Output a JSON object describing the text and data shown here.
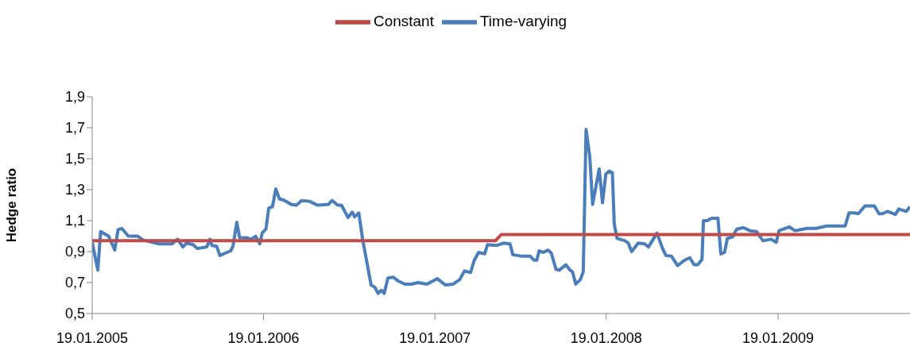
{
  "chart_data": {
    "type": "line",
    "ylabel": "Hedge ratio",
    "legend": "top",
    "xlim": [
      "2005-01-19",
      "2009-10-27"
    ],
    "xticks": [
      {
        "value": "2005-01-19",
        "label": "19.01.2005"
      },
      {
        "value": "2006-01-19",
        "label": "19.01.2006"
      },
      {
        "value": "2007-01-19",
        "label": "19.01.2007"
      },
      {
        "value": "2008-01-19",
        "label": "19.01.2008"
      },
      {
        "value": "2009-01-19",
        "label": "19.01.2009"
      }
    ],
    "ylim": [
      0.5,
      1.9
    ],
    "yticks": [
      {
        "value": 0.5,
        "label": "0,5"
      },
      {
        "value": 0.7,
        "label": "0,7"
      },
      {
        "value": 0.9,
        "label": "0,9"
      },
      {
        "value": 1.1,
        "label": "1,1"
      },
      {
        "value": 1.3,
        "label": "1,3"
      },
      {
        "value": 1.5,
        "label": "1,5"
      },
      {
        "value": 1.7,
        "label": "1,7"
      },
      {
        "value": 1.9,
        "label": "1,9"
      }
    ],
    "series": [
      {
        "name": "Time-varying",
        "color": "#4a7ebb",
        "x": [
          "2005-01-19",
          "2005-01-31",
          "2005-02-06",
          "2005-02-23",
          "2005-03-08",
          "2005-03-15",
          "2005-03-23",
          "2005-04-06",
          "2005-04-26",
          "2005-05-07",
          "2005-06-10",
          "2005-07-08",
          "2005-07-20",
          "2005-07-31",
          "2005-08-08",
          "2005-08-22",
          "2005-08-31",
          "2005-09-20",
          "2005-09-27",
          "2005-10-01",
          "2005-10-11",
          "2005-10-18",
          "2005-11-10",
          "2005-11-15",
          "2005-11-23",
          "2005-11-29",
          "2005-12-13",
          "2005-12-24",
          "2006-01-02",
          "2006-01-11",
          "2006-01-16",
          "2006-01-24",
          "2006-01-30",
          "2006-02-07",
          "2006-02-14",
          "2006-02-22",
          "2006-03-02",
          "2006-03-19",
          "2006-03-30",
          "2006-04-10",
          "2006-04-27",
          "2006-05-14",
          "2006-06-06",
          "2006-06-14",
          "2006-06-26",
          "2006-07-04",
          "2006-07-18",
          "2006-07-27",
          "2006-08-01",
          "2006-08-10",
          "2006-08-18",
          "2006-09-05",
          "2006-09-13",
          "2006-09-20",
          "2006-09-27",
          "2006-10-03",
          "2006-10-11",
          "2006-10-22",
          "2006-11-02",
          "2006-11-16",
          "2006-11-30",
          "2006-12-14",
          "2007-01-02",
          "2007-01-24",
          "2007-02-10",
          "2007-02-27",
          "2007-03-13",
          "2007-03-23",
          "2007-04-05",
          "2007-04-13",
          "2007-04-22",
          "2007-05-05",
          "2007-05-11",
          "2007-05-31",
          "2007-06-14",
          "2007-06-28",
          "2007-07-04",
          "2007-07-24",
          "2007-08-10",
          "2007-08-18",
          "2007-08-24",
          "2007-08-29",
          "2007-09-07",
          "2007-09-17",
          "2007-09-24",
          "2007-10-04",
          "2007-10-11",
          "2007-10-25",
          "2007-11-03",
          "2007-11-08",
          "2007-11-15",
          "2007-11-25",
          "2007-12-01",
          "2007-12-07",
          "2007-12-15",
          "2007-12-21",
          "2008-01-04",
          "2008-01-11",
          "2008-01-18",
          "2008-01-25",
          "2008-02-01",
          "2008-02-05",
          "2008-02-11",
          "2008-02-28",
          "2008-03-06",
          "2008-03-13",
          "2008-03-27",
          "2008-04-10",
          "2008-04-18",
          "2008-05-06",
          "2008-05-18",
          "2008-05-25",
          "2008-06-06",
          "2008-06-19",
          "2008-07-04",
          "2008-07-15",
          "2008-07-24",
          "2008-08-01",
          "2008-08-10",
          "2008-08-13",
          "2008-08-21",
          "2008-08-30",
          "2008-09-13",
          "2008-09-19",
          "2008-09-27",
          "2008-10-03",
          "2008-10-14",
          "2008-10-23",
          "2008-11-06",
          "2008-11-20",
          "2008-12-04",
          "2008-12-18",
          "2009-01-04",
          "2009-01-15",
          "2009-01-21",
          "2009-02-12",
          "2009-02-24",
          "2009-03-21",
          "2009-04-10",
          "2009-05-02",
          "2009-05-25",
          "2009-06-11",
          "2009-06-19",
          "2009-07-01",
          "2009-07-09",
          "2009-07-23",
          "2009-08-12",
          "2009-08-22",
          "2009-08-29",
          "2009-09-09",
          "2009-09-26",
          "2009-10-03",
          "2009-10-19",
          "2009-10-27"
        ],
        "values": [
          0.96,
          0.78,
          1.03,
          1.0,
          0.91,
          1.04,
          1.05,
          1.0,
          1.0,
          0.975,
          0.95,
          0.95,
          0.98,
          0.93,
          0.955,
          0.945,
          0.92,
          0.93,
          0.98,
          0.94,
          0.935,
          0.875,
          0.905,
          0.935,
          1.09,
          0.99,
          0.99,
          0.98,
          1.0,
          0.95,
          1.02,
          1.045,
          1.18,
          1.19,
          1.305,
          1.24,
          1.235,
          1.205,
          1.2,
          1.23,
          1.225,
          1.2,
          1.205,
          1.23,
          1.2,
          1.2,
          1.12,
          1.155,
          1.125,
          1.15,
          0.98,
          0.685,
          0.67,
          0.63,
          0.65,
          0.63,
          0.73,
          0.735,
          0.71,
          0.69,
          0.69,
          0.7,
          0.69,
          0.725,
          0.685,
          0.69,
          0.72,
          0.775,
          0.765,
          0.845,
          0.895,
          0.885,
          0.945,
          0.94,
          0.955,
          0.95,
          0.88,
          0.87,
          0.87,
          0.845,
          0.845,
          0.905,
          0.895,
          0.91,
          0.89,
          0.785,
          0.78,
          0.815,
          0.78,
          0.77,
          0.69,
          0.72,
          0.77,
          1.69,
          1.51,
          1.205,
          1.435,
          1.215,
          1.4,
          1.42,
          1.41,
          1.08,
          0.985,
          0.97,
          0.955,
          0.9,
          0.955,
          0.95,
          0.93,
          1.02,
          0.92,
          0.875,
          0.87,
          0.81,
          0.845,
          0.86,
          0.815,
          0.815,
          0.85,
          1.1,
          1.1,
          1.115,
          1.115,
          0.885,
          0.895,
          0.985,
          0.995,
          1.045,
          1.055,
          1.035,
          1.03,
          0.97,
          0.98,
          0.96,
          1.035,
          1.06,
          1.035,
          1.05,
          1.05,
          1.065,
          1.065,
          1.065,
          1.15,
          1.15,
          1.145,
          1.195,
          1.195,
          1.145,
          1.145,
          1.16,
          1.14,
          1.175,
          1.16,
          1.19
        ]
      },
      {
        "name": "Constant",
        "color": "#be4b48",
        "x": [
          "2005-01-19",
          "2007-05-28",
          "2007-06-09",
          "2009-10-27"
        ],
        "values": [
          0.97,
          0.97,
          1.01,
          1.01
        ]
      }
    ]
  }
}
